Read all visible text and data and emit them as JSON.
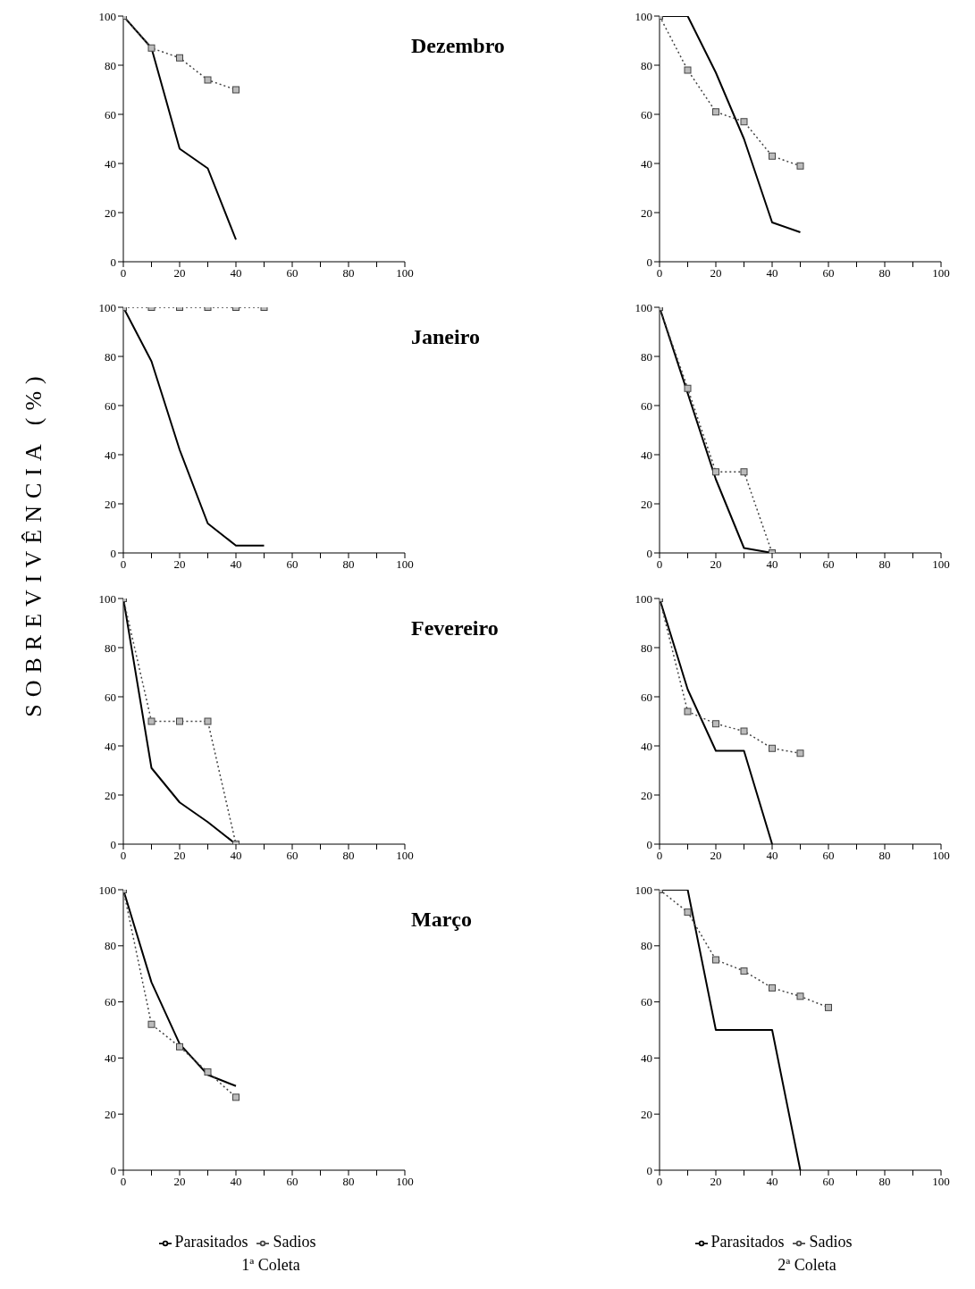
{
  "chart_data": [
    {
      "type": "line",
      "title": "Dezembro",
      "ylabel": "SOBREVIVÊNCIA (%)",
      "xlim": [
        0,
        100
      ],
      "ylim": [
        0,
        100
      ],
      "xticks": [
        0,
        {
          "value": 10,
          "label": null
        },
        20,
        {
          "value": 30,
          "label": null
        },
        40,
        {
          "value": 50,
          "label": null
        },
        60,
        {
          "value": 70,
          "label": null
        },
        80,
        {
          "value": 90,
          "label": null
        },
        100
      ],
      "yticks": [
        0,
        20,
        40,
        60,
        80,
        100
      ],
      "grid": false,
      "series": [
        {
          "color": "#000000",
          "line_style": "solid",
          "marker": "none",
          "x": [
            0,
            10,
            20,
            30,
            40
          ],
          "values": [
            100,
            87,
            46,
            38,
            9
          ]
        },
        {
          "color": "#444444",
          "line_style": "dotted",
          "marker": "square",
          "x": [
            0,
            10,
            20,
            30,
            40
          ],
          "values": [
            100,
            87,
            83,
            74,
            70
          ]
        }
      ]
    },
    {
      "type": "line",
      "xlim": [
        0,
        100
      ],
      "ylim": [
        0,
        100
      ],
      "xticks": [
        0,
        {
          "value": 10,
          "label": null
        },
        20,
        {
          "value": 30,
          "label": null
        },
        40,
        {
          "value": 50,
          "label": null
        },
        60,
        {
          "value": 70,
          "label": null
        },
        80,
        {
          "value": 90,
          "label": null
        },
        100
      ],
      "yticks": [
        0,
        20,
        40,
        60,
        80,
        100
      ],
      "grid": false,
      "series": [
        {
          "color": "#000000",
          "line_style": "solid",
          "marker": "none",
          "x": [
            0,
            10,
            20,
            30,
            40,
            50
          ],
          "values": [
            100,
            100,
            77,
            50,
            16,
            12
          ]
        },
        {
          "color": "#444444",
          "line_style": "dotted",
          "marker": "square",
          "x": [
            0,
            10,
            20,
            30,
            40,
            50
          ],
          "values": [
            100,
            78,
            61,
            57,
            43,
            39
          ]
        }
      ]
    },
    {
      "type": "line",
      "title": "Janeiro",
      "xlim": [
        0,
        100
      ],
      "ylim": [
        0,
        100
      ],
      "xticks": [
        0,
        {
          "value": 10,
          "label": null
        },
        20,
        {
          "value": 30,
          "label": null
        },
        40,
        {
          "value": 50,
          "label": null
        },
        60,
        {
          "value": 70,
          "label": null
        },
        80,
        {
          "value": 90,
          "label": null
        },
        100
      ],
      "yticks": [
        0,
        20,
        40,
        60,
        80,
        100
      ],
      "grid": false,
      "series": [
        {
          "color": "#000000",
          "line_style": "solid",
          "marker": "none",
          "x": [
            0,
            10,
            20,
            30,
            40,
            50
          ],
          "values": [
            100,
            78,
            42,
            12,
            3,
            3
          ]
        },
        {
          "color": "#444444",
          "line_style": "dotted",
          "marker": "square",
          "x": [
            0,
            10,
            20,
            30,
            40,
            50
          ],
          "values": [
            100,
            100,
            100,
            100,
            100,
            100
          ]
        }
      ]
    },
    {
      "type": "line",
      "xlim": [
        0,
        100
      ],
      "ylim": [
        0,
        100
      ],
      "xticks": [
        0,
        {
          "value": 10,
          "label": null
        },
        20,
        {
          "value": 30,
          "label": null
        },
        40,
        {
          "value": 50,
          "label": null
        },
        60,
        {
          "value": 70,
          "label": null
        },
        80,
        {
          "value": 90,
          "label": null
        },
        100
      ],
      "yticks": [
        0,
        20,
        40,
        60,
        80,
        100
      ],
      "grid": false,
      "series": [
        {
          "color": "#000000",
          "line_style": "solid",
          "marker": "none",
          "x": [
            0,
            10,
            20,
            30,
            40
          ],
          "values": [
            100,
            65,
            30,
            2,
            0
          ]
        },
        {
          "color": "#444444",
          "line_style": "dotted",
          "marker": "square",
          "x": [
            0,
            10,
            20,
            30,
            40
          ],
          "values": [
            100,
            67,
            33,
            33,
            0
          ]
        }
      ]
    },
    {
      "type": "line",
      "title": "Fevereiro",
      "xlim": [
        0,
        100
      ],
      "ylim": [
        0,
        100
      ],
      "xticks": [
        0,
        {
          "value": 10,
          "label": null
        },
        20,
        {
          "value": 30,
          "label": null
        },
        40,
        {
          "value": 50,
          "label": null
        },
        60,
        {
          "value": 70,
          "label": null
        },
        80,
        {
          "value": 90,
          "label": null
        },
        100
      ],
      "yticks": [
        0,
        20,
        40,
        60,
        80,
        100
      ],
      "grid": false,
      "series": [
        {
          "color": "#000000",
          "line_style": "solid",
          "marker": "none",
          "x": [
            0,
            10,
            20,
            30,
            40
          ],
          "values": [
            100,
            31,
            17,
            9,
            0
          ]
        },
        {
          "color": "#444444",
          "line_style": "dotted",
          "marker": "square",
          "x": [
            0,
            10,
            20,
            30,
            40
          ],
          "values": [
            100,
            50,
            50,
            50,
            0
          ]
        }
      ]
    },
    {
      "type": "line",
      "xlim": [
        0,
        100
      ],
      "ylim": [
        0,
        100
      ],
      "xticks": [
        0,
        {
          "value": 10,
          "label": null
        },
        20,
        {
          "value": 30,
          "label": null
        },
        40,
        {
          "value": 50,
          "label": null
        },
        60,
        {
          "value": 70,
          "label": null
        },
        80,
        {
          "value": 90,
          "label": null
        },
        100
      ],
      "yticks": [
        0,
        20,
        40,
        60,
        80,
        100
      ],
      "grid": false,
      "series": [
        {
          "color": "#000000",
          "line_style": "solid",
          "marker": "none",
          "x": [
            0,
            10,
            20,
            30,
            40
          ],
          "values": [
            100,
            63,
            38,
            38,
            0
          ]
        },
        {
          "color": "#444444",
          "line_style": "dotted",
          "marker": "square",
          "x": [
            0,
            10,
            20,
            30,
            40,
            50
          ],
          "values": [
            100,
            54,
            49,
            46,
            39,
            37
          ]
        }
      ]
    },
    {
      "type": "line",
      "title": "Março",
      "xlim": [
        0,
        100
      ],
      "ylim": [
        0,
        100
      ],
      "xticks": [
        0,
        {
          "value": 10,
          "label": null
        },
        20,
        {
          "value": 30,
          "label": null
        },
        40,
        {
          "value": 50,
          "label": null
        },
        60,
        {
          "value": 70,
          "label": null
        },
        80,
        {
          "value": 90,
          "label": null
        },
        100
      ],
      "yticks": [
        0,
        20,
        40,
        60,
        80,
        100
      ],
      "grid": false,
      "legend": "bottom",
      "annotations": [
        "1ª Coleta"
      ],
      "series": [
        {
          "name": "Parasitados",
          "color": "#000000",
          "line_style": "solid",
          "marker": "none",
          "x": [
            0,
            10,
            20,
            30,
            40
          ],
          "values": [
            100,
            67,
            45,
            34,
            30
          ]
        },
        {
          "name": "Sadios",
          "color": "#444444",
          "line_style": "dotted",
          "marker": "square",
          "x": [
            0,
            10,
            20,
            30,
            40
          ],
          "values": [
            100,
            52,
            44,
            35,
            26
          ]
        }
      ]
    },
    {
      "type": "line",
      "xlim": [
        0,
        100
      ],
      "ylim": [
        0,
        100
      ],
      "xticks": [
        0,
        {
          "value": 10,
          "label": null
        },
        20,
        {
          "value": 30,
          "label": null
        },
        40,
        {
          "value": 50,
          "label": null
        },
        60,
        {
          "value": 70,
          "label": null
        },
        80,
        {
          "value": 90,
          "label": null
        },
        100
      ],
      "yticks": [
        0,
        20,
        40,
        60,
        80,
        100
      ],
      "grid": false,
      "legend": "bottom",
      "annotations": [
        "2ª Coleta"
      ],
      "series": [
        {
          "name": "Parasitados",
          "color": "#000000",
          "line_style": "solid",
          "marker": "none",
          "x": [
            0,
            10,
            20,
            30,
            40,
            50
          ],
          "values": [
            100,
            100,
            50,
            50,
            50,
            0
          ]
        },
        {
          "name": "Sadios",
          "color": "#444444",
          "line_style": "dotted",
          "marker": "square",
          "x": [
            0,
            10,
            20,
            30,
            40,
            50,
            60
          ],
          "values": [
            100,
            92,
            75,
            71,
            65,
            62,
            58
          ]
        }
      ]
    }
  ]
}
